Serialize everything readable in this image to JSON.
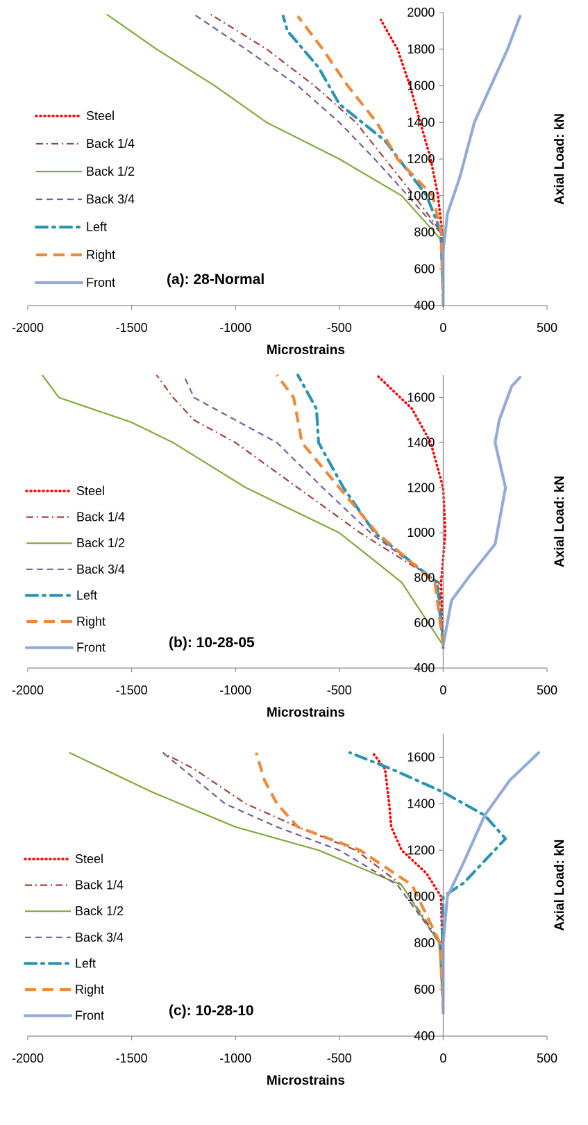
{
  "chart_data": [
    {
      "type": "line",
      "panel_label": "(a):  28-Normal",
      "xlabel": "Microstrains",
      "ylabel": "Axial Load: kN",
      "xlim": [
        -2000,
        500
      ],
      "ylim": [
        400,
        2000
      ],
      "xticks": [
        -2000,
        -1500,
        -1000,
        -500,
        0,
        500
      ],
      "yticks": [
        400,
        600,
        800,
        1000,
        1200,
        1400,
        1600,
        1800,
        2000
      ],
      "legend": "left",
      "series": [
        {
          "name": "Steel",
          "color": "#ff0000",
          "dash": "dotted",
          "points": [
            [
              0,
              400
            ],
            [
              -5,
              800
            ],
            [
              -25,
              1000
            ],
            [
              -60,
              1200
            ],
            [
              -110,
              1400
            ],
            [
              -160,
              1600
            ],
            [
              -220,
              1800
            ],
            [
              -300,
              1960
            ]
          ]
        },
        {
          "name": "Back 1/4",
          "color": "#a0413c",
          "dash": "dashdot",
          "points": [
            [
              0,
              400
            ],
            [
              -10,
              800
            ],
            [
              -140,
              1000
            ],
            [
              -280,
              1200
            ],
            [
              -420,
              1400
            ],
            [
              -620,
              1600
            ],
            [
              -850,
              1800
            ],
            [
              -1120,
              1990
            ]
          ]
        },
        {
          "name": "Back 1/2",
          "color": "#7faa3c",
          "dash": "solid",
          "points": [
            [
              0,
              400
            ],
            [
              -10,
              760
            ],
            [
              -200,
              1000
            ],
            [
              -500,
              1200
            ],
            [
              -850,
              1400
            ],
            [
              -1100,
              1600
            ],
            [
              -1380,
              1800
            ],
            [
              -1620,
              1990
            ]
          ]
        },
        {
          "name": "Back 3/4",
          "color": "#7a5aa0",
          "dash": "dashed",
          "points": [
            [
              0,
              400
            ],
            [
              -15,
              800
            ],
            [
              -170,
              1000
            ],
            [
              -330,
              1200
            ],
            [
              -500,
              1400
            ],
            [
              -700,
              1600
            ],
            [
              -950,
              1800
            ],
            [
              -1200,
              1990
            ]
          ]
        },
        {
          "name": "Left",
          "color": "#2b95b1",
          "dash": "longdashdot",
          "points": [
            [
              0,
              400
            ],
            [
              -10,
              800
            ],
            [
              -80,
              1000
            ],
            [
              -280,
              1300
            ],
            [
              -500,
              1500
            ],
            [
              -600,
              1700
            ],
            [
              -750,
              1900
            ],
            [
              -770,
              1980
            ]
          ]
        },
        {
          "name": "Right",
          "color": "#ed8a3a",
          "dash": "longdash",
          "points": [
            [
              0,
              400
            ],
            [
              -10,
              800
            ],
            [
              -50,
              1000
            ],
            [
              -220,
              1200
            ],
            [
              -320,
              1400
            ],
            [
              -460,
              1600
            ],
            [
              -580,
              1800
            ],
            [
              -700,
              1980
            ]
          ]
        },
        {
          "name": "Front",
          "color": "#94abd8",
          "dash": "solid-thick",
          "points": [
            [
              0,
              400
            ],
            [
              0,
              700
            ],
            [
              20,
              900
            ],
            [
              80,
              1100
            ],
            [
              150,
              1400
            ],
            [
              230,
              1600
            ],
            [
              310,
              1800
            ],
            [
              370,
              1980
            ]
          ]
        }
      ]
    },
    {
      "type": "line",
      "panel_label": "(b):  10-28-05",
      "xlabel": "Microstrains",
      "ylabel": "Axial Load: kN",
      "xlim": [
        -2000,
        500
      ],
      "ylim": [
        400,
        1700
      ],
      "xticks": [
        -2000,
        -1500,
        -1000,
        -500,
        0,
        500
      ],
      "yticks": [
        400,
        600,
        800,
        1000,
        1200,
        1400,
        1600
      ],
      "legend": "left",
      "series": [
        {
          "name": "Steel",
          "color": "#ff0000",
          "dash": "dotted",
          "points": [
            [
              0,
              490
            ],
            [
              -10,
              780
            ],
            [
              10,
              1000
            ],
            [
              0,
              1200
            ],
            [
              -60,
              1400
            ],
            [
              -150,
              1550
            ],
            [
              -320,
              1700
            ]
          ]
        },
        {
          "name": "Back 1/4",
          "color": "#a0413c",
          "dash": "dashdot",
          "points": [
            [
              0,
              500
            ],
            [
              -20,
              780
            ],
            [
              -400,
              1000
            ],
            [
              -700,
              1200
            ],
            [
              -1000,
              1400
            ],
            [
              -1200,
              1500
            ],
            [
              -1300,
              1600
            ],
            [
              -1380,
              1700
            ]
          ]
        },
        {
          "name": "Back 1/2",
          "color": "#7faa3c",
          "dash": "solid",
          "points": [
            [
              0,
              500
            ],
            [
              -200,
              780
            ],
            [
              -500,
              1000
            ],
            [
              -950,
              1200
            ],
            [
              -1300,
              1400
            ],
            [
              -1500,
              1490
            ],
            [
              -1850,
              1600
            ],
            [
              -1930,
              1700
            ]
          ]
        },
        {
          "name": "Back 3/4",
          "color": "#7a5aa0",
          "dash": "dashed",
          "points": [
            [
              0,
              500
            ],
            [
              -30,
              780
            ],
            [
              -350,
              1000
            ],
            [
              -580,
              1200
            ],
            [
              -800,
              1400
            ],
            [
              -1000,
              1500
            ],
            [
              -1200,
              1600
            ],
            [
              -1250,
              1700
            ]
          ]
        },
        {
          "name": "Left",
          "color": "#2b95b1",
          "dash": "longdashdot",
          "points": [
            [
              0,
              500
            ],
            [
              -30,
              780
            ],
            [
              -330,
              1000
            ],
            [
              -480,
              1200
            ],
            [
              -600,
              1400
            ],
            [
              -610,
              1550
            ],
            [
              -700,
              1700
            ]
          ]
        },
        {
          "name": "Right",
          "color": "#ed8a3a",
          "dash": "longdash",
          "points": [
            [
              0,
              500
            ],
            [
              -40,
              780
            ],
            [
              -320,
              1000
            ],
            [
              -500,
              1200
            ],
            [
              -680,
              1400
            ],
            [
              -720,
              1600
            ],
            [
              -800,
              1700
            ]
          ]
        },
        {
          "name": "Front",
          "color": "#94abd8",
          "dash": "solid-thick",
          "points": [
            [
              0,
              500
            ],
            [
              20,
              600
            ],
            [
              40,
              700
            ],
            [
              120,
              800
            ],
            [
              250,
              950
            ],
            [
              300,
              1200
            ],
            [
              250,
              1400
            ],
            [
              270,
              1500
            ],
            [
              330,
              1650
            ],
            [
              370,
              1690
            ]
          ]
        }
      ]
    },
    {
      "type": "line",
      "panel_label": "(c):  10-28-10",
      "xlabel": "Microstrains",
      "ylabel": "Axial Load: kN",
      "xlim": [
        -2000,
        500
      ],
      "ylim": [
        400,
        1700
      ],
      "xticks": [
        -2000,
        -1500,
        -1000,
        -500,
        0,
        500
      ],
      "yticks": [
        400,
        600,
        800,
        1000,
        1200,
        1400,
        1600
      ],
      "legend": "left",
      "series": [
        {
          "name": "Steel",
          "color": "#ff0000",
          "dash": "dotted",
          "points": [
            [
              0,
              500
            ],
            [
              -5,
              800
            ],
            [
              -10,
              1000
            ],
            [
              -80,
              1100
            ],
            [
              -200,
              1200
            ],
            [
              -250,
              1300
            ],
            [
              -260,
              1400
            ],
            [
              -280,
              1550
            ],
            [
              -340,
              1620
            ]
          ]
        },
        {
          "name": "Back 1/4",
          "color": "#a0413c",
          "dash": "dashdot",
          "points": [
            [
              0,
              500
            ],
            [
              -10,
              800
            ],
            [
              -200,
              1050
            ],
            [
              -420,
              1200
            ],
            [
              -700,
              1300
            ],
            [
              -950,
              1400
            ],
            [
              -1200,
              1550
            ],
            [
              -1350,
              1620
            ]
          ]
        },
        {
          "name": "Back 1/2",
          "color": "#7faa3c",
          "dash": "solid",
          "points": [
            [
              0,
              500
            ],
            [
              -20,
              800
            ],
            [
              -200,
              1050
            ],
            [
              -600,
              1200
            ],
            [
              -1000,
              1300
            ],
            [
              -1400,
              1450
            ],
            [
              -1800,
              1620
            ]
          ]
        },
        {
          "name": "Back 3/4",
          "color": "#7a5aa0",
          "dash": "dashed",
          "points": [
            [
              0,
              500
            ],
            [
              -15,
              800
            ],
            [
              -220,
              1050
            ],
            [
              -500,
              1200
            ],
            [
              -800,
              1300
            ],
            [
              -1050,
              1400
            ],
            [
              -1350,
              1620
            ]
          ]
        },
        {
          "name": "Left",
          "color": "#2b95b1",
          "dash": "longdashdot",
          "points": [
            [
              0,
              500
            ],
            [
              -5,
              800
            ],
            [
              0,
              1000
            ],
            [
              100,
              1060
            ],
            [
              300,
              1250
            ],
            [
              200,
              1350
            ],
            [
              0,
              1450
            ],
            [
              -250,
              1550
            ],
            [
              -450,
              1620
            ]
          ]
        },
        {
          "name": "Right",
          "color": "#ed8a3a",
          "dash": "longdash",
          "points": [
            [
              0,
              500
            ],
            [
              -15,
              800
            ],
            [
              -150,
              1050
            ],
            [
              -400,
              1200
            ],
            [
              -700,
              1300
            ],
            [
              -800,
              1400
            ],
            [
              -860,
              1500
            ],
            [
              -900,
              1620
            ]
          ]
        },
        {
          "name": "Front",
          "color": "#94abd8",
          "dash": "solid-thick",
          "points": [
            [
              0,
              500
            ],
            [
              0,
              800
            ],
            [
              20,
              1000
            ],
            [
              100,
              1150
            ],
            [
              200,
              1350
            ],
            [
              320,
              1500
            ],
            [
              460,
              1620
            ]
          ]
        }
      ]
    }
  ]
}
